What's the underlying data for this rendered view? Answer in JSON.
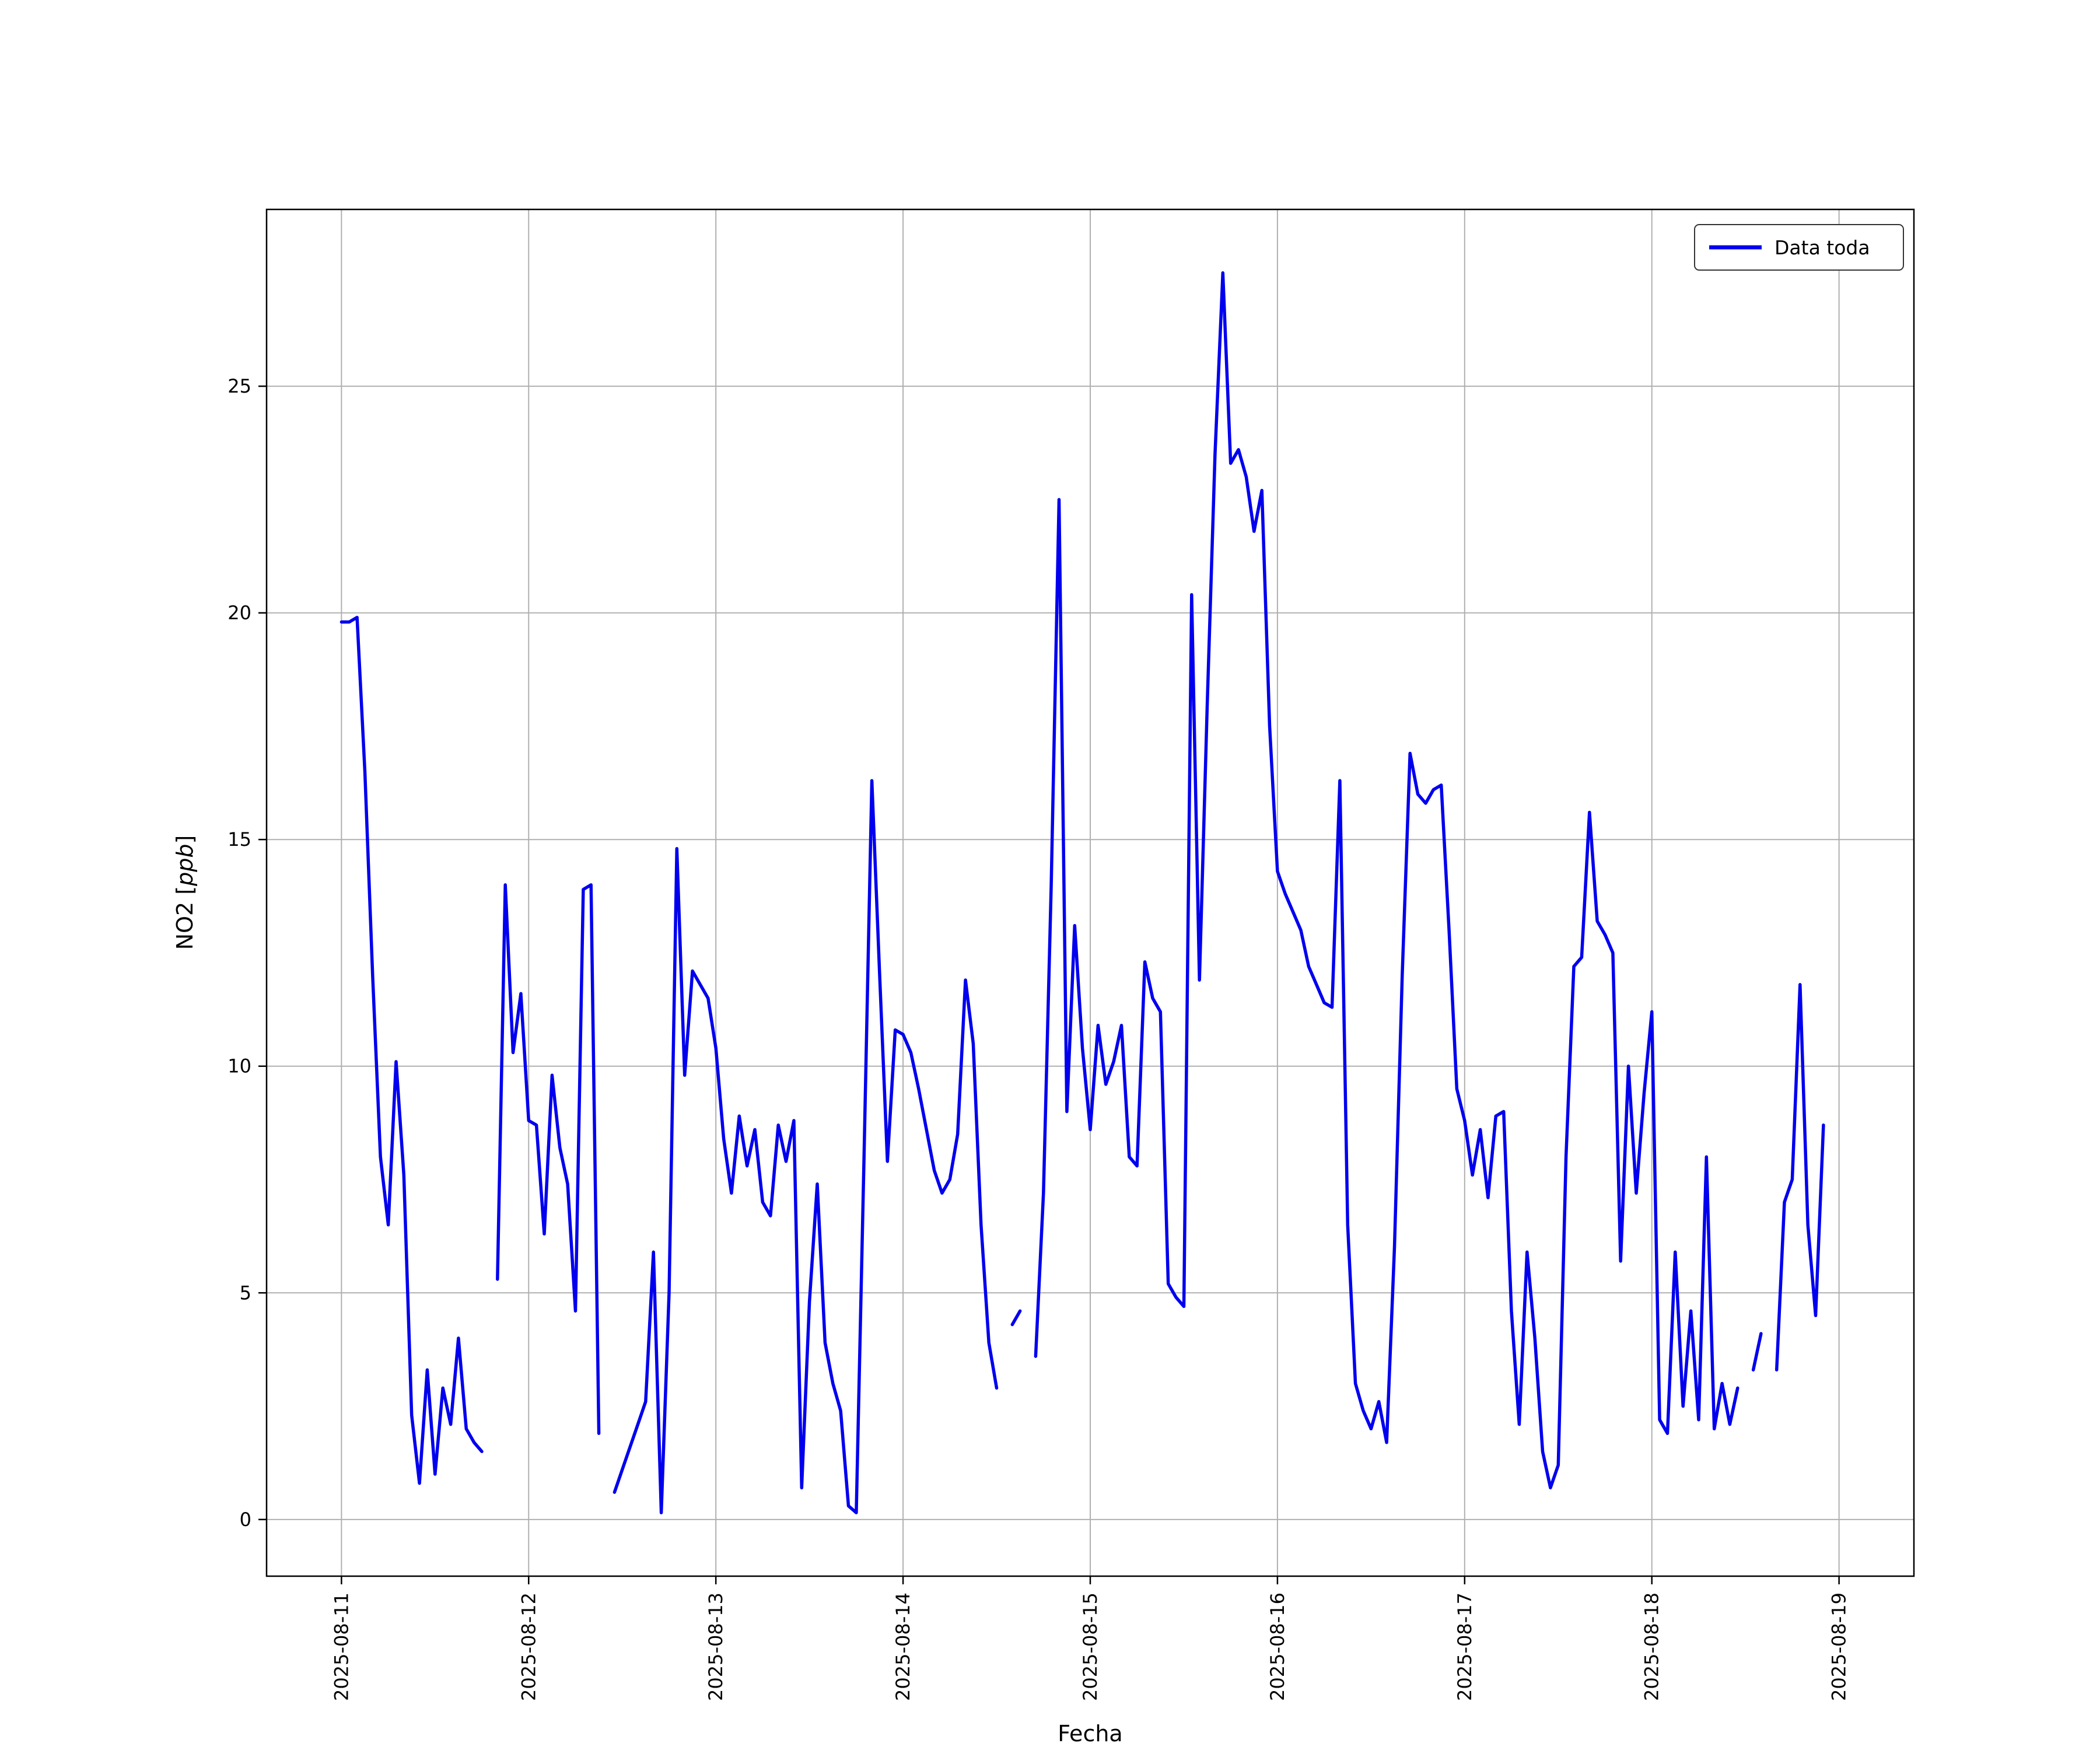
{
  "figure": {
    "background": "#ffffff",
    "text_color": "#000000"
  },
  "chart_data": {
    "type": "line",
    "title": "",
    "xlabel": "Fecha",
    "ylabel": "NO2 [ppb]",
    "ylabel_parts": {
      "prefix": "NO2 [",
      "italic": "ppb",
      "suffix": "]"
    },
    "grid": true,
    "grid_color": "#b0b0b0",
    "spine_color": "#000000",
    "line": {
      "color": "#0000ee",
      "width": 5.5
    },
    "legend": {
      "label": "Data toda",
      "position": "upper right",
      "border_color": "#333333",
      "background": "#ffffff"
    },
    "x_ticks": [
      "2025-08-11",
      "2025-08-12",
      "2025-08-13",
      "2025-08-14",
      "2025-08-15",
      "2025-08-16",
      "2025-08-17",
      "2025-08-18",
      "2025-08-19"
    ],
    "x_tick_rotation": 90,
    "y_ticks": [
      0,
      5,
      10,
      15,
      20,
      25
    ],
    "xlim_days": [
      -0.4,
      8.4
    ],
    "ylim": [
      -1.25,
      28.9
    ],
    "series": [
      {
        "name": "Data toda",
        "start": "2025-08-11 00:00",
        "step_hours": 1,
        "values": [
          19.8,
          19.8,
          19.9,
          16.5,
          12.0,
          8.0,
          6.5,
          10.1,
          7.6,
          2.3,
          0.8,
          3.3,
          1.0,
          2.9,
          2.1,
          4.0,
          2.0,
          1.7,
          1.5,
          null,
          5.3,
          14.0,
          10.3,
          11.6,
          8.8,
          8.7,
          6.3,
          9.8,
          8.2,
          7.4,
          4.6,
          13.9,
          14.0,
          1.9,
          null,
          0.6,
          1.1,
          1.6,
          2.1,
          2.6,
          5.9,
          0.15,
          5.0,
          14.8,
          9.8,
          12.1,
          11.8,
          11.5,
          10.4,
          8.4,
          7.2,
          8.9,
          7.8,
          8.6,
          7.0,
          6.7,
          8.7,
          7.9,
          8.8,
          0.7,
          4.8,
          7.4,
          3.9,
          3.0,
          2.4,
          0.3,
          0.15,
          8.0,
          16.3,
          12.0,
          7.9,
          10.8,
          10.7,
          10.3,
          9.5,
          8.6,
          7.7,
          7.2,
          7.5,
          8.5,
          11.9,
          10.5,
          6.5,
          3.9,
          2.9,
          null,
          4.3,
          4.6,
          null,
          3.6,
          7.2,
          14.0,
          22.5,
          9.0,
          13.1,
          10.4,
          8.6,
          10.9,
          9.6,
          10.1,
          10.9,
          8.0,
          7.8,
          12.3,
          11.5,
          11.2,
          5.2,
          4.9,
          4.7,
          20.4,
          11.9,
          18.0,
          23.5,
          27.5,
          23.3,
          23.6,
          23.0,
          21.8,
          22.7,
          17.5,
          14.3,
          13.8,
          13.4,
          13.0,
          12.2,
          11.8,
          11.4,
          11.3,
          16.3,
          6.5,
          3.0,
          2.4,
          2.0,
          2.6,
          1.7,
          6.0,
          12.0,
          16.9,
          16.0,
          15.8,
          16.1,
          16.2,
          13.0,
          9.5,
          8.8,
          7.6,
          8.6,
          7.1,
          8.9,
          9.0,
          4.6,
          2.1,
          5.9,
          4.0,
          1.5,
          0.7,
          1.2,
          8.0,
          12.2,
          12.4,
          15.6,
          13.2,
          12.9,
          12.5,
          5.7,
          10.0,
          7.2,
          9.4,
          11.2,
          2.2,
          1.9,
          5.9,
          2.5,
          4.6,
          2.2,
          8.0,
          2.0,
          3.0,
          2.1,
          2.9,
          null,
          3.3,
          4.1,
          null,
          3.3,
          7.0,
          7.5,
          11.8,
          6.5,
          4.5,
          8.7,
          null,
          null
        ]
      }
    ]
  }
}
